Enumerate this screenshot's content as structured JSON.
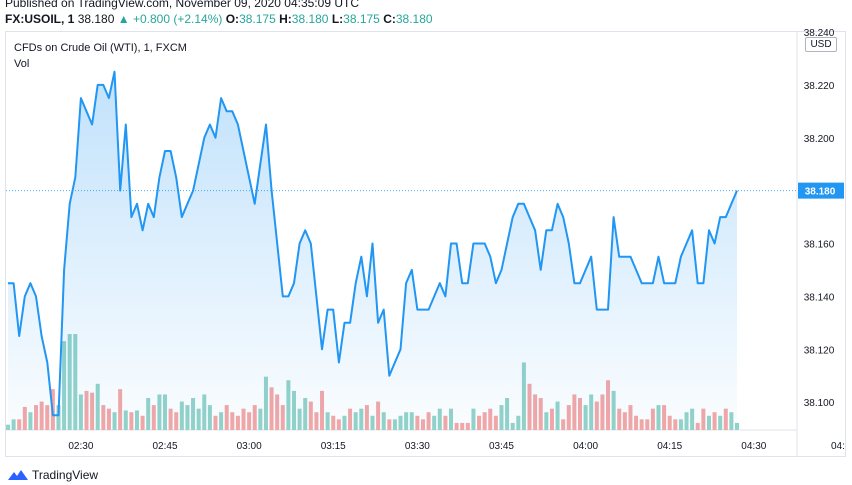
{
  "header": {
    "published": "Published on TradingView.com, November 09, 2020 04:35:09 UTC",
    "symbol": "FX:USOIL, 1",
    "last": "38.180",
    "change": "+0.800 (+2.14%)",
    "o_label": "O:",
    "o_value": "38.175",
    "h_label": "H:",
    "h_value": "38.180",
    "l_label": "L:",
    "l_value": "38.175",
    "c_label": "C:",
    "c_value": "38.180",
    "up_color": "#26a69a",
    "arrow_icon": "triangle-up-icon"
  },
  "legend": {
    "title": "CFDs on Crude Oil (WTI), 1, FXCM",
    "vol": "Vol"
  },
  "currency": "USD",
  "price_label": "38.180",
  "footer": {
    "brand": "TradingView"
  },
  "chart_data": {
    "type": "area",
    "line_color": "#2196f3",
    "volume_up_color": "#93d3c9",
    "volume_down_color": "#f4a7a6",
    "ylim": [
      38.08,
      38.24
    ],
    "y_ticks": [
      "38.240",
      "38.220",
      "38.200",
      "38.180",
      "38.160",
      "38.140",
      "38.120",
      "38.100"
    ],
    "x_ticks": [
      "02:30",
      "02:45",
      "03:00",
      "03:15",
      "03:30",
      "03:45",
      "04:00",
      "04:15",
      "04:30",
      "04:"
    ],
    "x_tick_minutes": [
      0,
      15,
      30,
      45,
      60,
      75,
      90,
      105,
      120,
      135
    ],
    "series": [
      {
        "values": [
          38.145,
          38.145,
          38.125,
          38.14,
          38.145,
          38.14,
          38.125,
          38.115,
          38.095,
          38.095,
          38.15,
          38.175,
          38.185,
          38.215,
          38.21,
          38.205,
          38.22,
          38.22,
          38.215,
          38.225,
          38.18,
          38.205,
          38.17,
          38.175,
          38.165,
          38.175,
          38.17,
          38.185,
          38.195,
          38.195,
          38.185,
          38.17,
          38.175,
          38.18,
          38.19,
          38.2,
          38.205,
          38.2,
          38.215,
          38.21,
          38.21,
          38.205,
          38.195,
          38.185,
          38.175,
          38.19,
          38.205,
          38.18,
          38.16,
          38.14,
          38.14,
          38.145,
          38.16,
          38.165,
          38.16,
          38.14,
          38.12,
          38.135,
          38.135,
          38.115,
          38.13,
          38.13,
          38.145,
          38.155,
          38.14,
          38.16,
          38.13,
          38.135,
          38.11,
          38.115,
          38.12,
          38.145,
          38.15,
          38.135,
          38.135,
          38.135,
          38.14,
          38.145,
          38.14,
          38.16,
          38.16,
          38.145,
          38.145,
          38.16,
          38.16,
          38.16,
          38.155,
          38.145,
          38.15,
          38.16,
          38.17,
          38.175,
          38.175,
          38.17,
          38.165,
          38.15,
          38.165,
          38.165,
          38.175,
          38.17,
          38.16,
          38.145,
          38.145,
          38.15,
          38.155,
          38.135,
          38.135,
          38.135,
          38.17,
          38.155,
          38.155,
          38.155,
          38.15,
          38.145,
          38.145,
          38.145,
          38.155,
          38.145,
          38.145,
          38.145,
          38.155,
          38.16,
          38.165,
          38.145,
          38.145,
          38.165,
          38.16,
          38.17,
          38.17,
          38.175,
          38.18
        ]
      }
    ],
    "volume": [
      3,
      6,
      6,
      13,
      10,
      14,
      16,
      14,
      23,
      14,
      50,
      54,
      54,
      20,
      22,
      21,
      26,
      14,
      12,
      10,
      23,
      11,
      10,
      11,
      8,
      18,
      14,
      20,
      20,
      12,
      10,
      16,
      14,
      18,
      12,
      20,
      14,
      8,
      10,
      14,
      10,
      8,
      12,
      10,
      14,
      12,
      30,
      24,
      20,
      14,
      28,
      22,
      12,
      18,
      16,
      10,
      22,
      10,
      8,
      6,
      8,
      12,
      10,
      12,
      14,
      8,
      16,
      10,
      6,
      6,
      8,
      10,
      10,
      8,
      6,
      10,
      8,
      12,
      8,
      12,
      4,
      4,
      4,
      12,
      8,
      10,
      12,
      8,
      14,
      18,
      4,
      8,
      38,
      26,
      20,
      18,
      10,
      12,
      16,
      6,
      14,
      20,
      18,
      14,
      20,
      16,
      20,
      28,
      22,
      12,
      10,
      14,
      8,
      6,
      6,
      12,
      14,
      14,
      8,
      6,
      6,
      10,
      12,
      4,
      12,
      8,
      10,
      8,
      12,
      10,
      4
    ],
    "volume_up": [
      1,
      1,
      0,
      0,
      1,
      0,
      0,
      0,
      0,
      1,
      1,
      1,
      1,
      1,
      0,
      0,
      1,
      0,
      0,
      1,
      0,
      1,
      0,
      1,
      0,
      1,
      0,
      1,
      1,
      0,
      0,
      1,
      1,
      1,
      1,
      1,
      1,
      0,
      1,
      0,
      0,
      0,
      0,
      0,
      0,
      1,
      1,
      0,
      0,
      0,
      1,
      1,
      1,
      1,
      0,
      0,
      0,
      1,
      0,
      0,
      1,
      0,
      1,
      1,
      0,
      1,
      0,
      1,
      0,
      1,
      1,
      1,
      1,
      0,
      0,
      0,
      1,
      1,
      0,
      1,
      0,
      0,
      0,
      1,
      0,
      0,
      0,
      0,
      1,
      1,
      1,
      1,
      1,
      0,
      0,
      0,
      1,
      0,
      1,
      0,
      0,
      0,
      0,
      1,
      1,
      0,
      0,
      0,
      1,
      0,
      0,
      0,
      0,
      0,
      0,
      0,
      1,
      0,
      0,
      0,
      1,
      1,
      1,
      0,
      0,
      1,
      0,
      1,
      0,
      1,
      1
    ]
  }
}
